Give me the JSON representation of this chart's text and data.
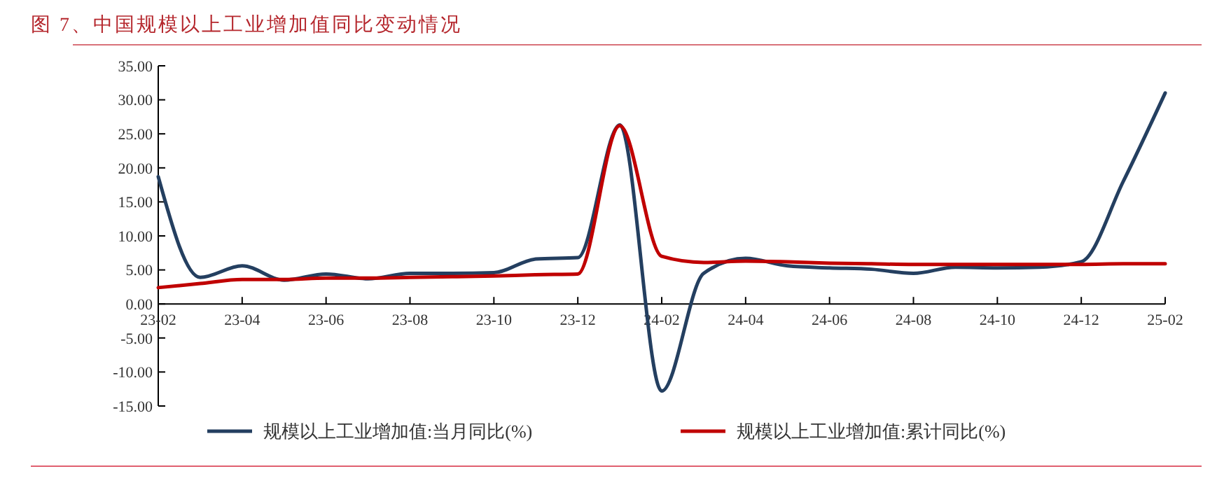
{
  "chart_data": {
    "type": "line",
    "title": "图 7、中国规模以上工业增加值同比变动情况",
    "categories": [
      "23-02",
      null,
      "23-04",
      null,
      "23-06",
      null,
      "23-08",
      null,
      "23-10",
      null,
      "23-12",
      null,
      "24-02",
      null,
      "24-04",
      null,
      "24-06",
      null,
      "24-08",
      null,
      "24-10",
      null,
      "24-12",
      null,
      "25-02"
    ],
    "series": [
      {
        "name": "规模以上工业增加值:当月同比(%)",
        "color": "#243f60",
        "values": [
          18.7,
          3.9,
          5.6,
          3.5,
          4.4,
          3.7,
          4.5,
          4.5,
          4.6,
          6.6,
          6.8,
          26.3,
          -12.8,
          4.5,
          6.7,
          5.6,
          5.3,
          5.1,
          4.5,
          5.4,
          5.3,
          5.4,
          6.2,
          18.0,
          31.0
        ]
      },
      {
        "name": "规模以上工业增加值:累计同比(%)",
        "color": "#c00000",
        "values": [
          2.4,
          3.0,
          3.6,
          3.6,
          3.8,
          3.8,
          3.9,
          4.0,
          4.1,
          4.3,
          4.4,
          26.2,
          7.0,
          6.1,
          6.3,
          6.2,
          6.0,
          5.9,
          5.8,
          5.8,
          5.8,
          5.8,
          5.8,
          5.9,
          5.9
        ]
      }
    ],
    "ylim": [
      -15,
      35
    ],
    "yticks": [
      {
        "value": -15,
        "label": "-15.00"
      },
      {
        "value": -10,
        "label": "-10.00"
      },
      {
        "value": -5,
        "label": "-5.00"
      },
      {
        "value": 0,
        "label": "0.00"
      },
      {
        "value": 5,
        "label": "5.00"
      },
      {
        "value": 10,
        "label": "10.00"
      },
      {
        "value": 15,
        "label": "15.00"
      },
      {
        "value": 20,
        "label": "20.00"
      },
      {
        "value": 25,
        "label": "25.00"
      },
      {
        "value": 30,
        "label": "30.00"
      },
      {
        "value": 35,
        "label": "35.00"
      }
    ],
    "grid": false,
    "legend": "bottom",
    "marker": "none",
    "line_style": "solid"
  }
}
